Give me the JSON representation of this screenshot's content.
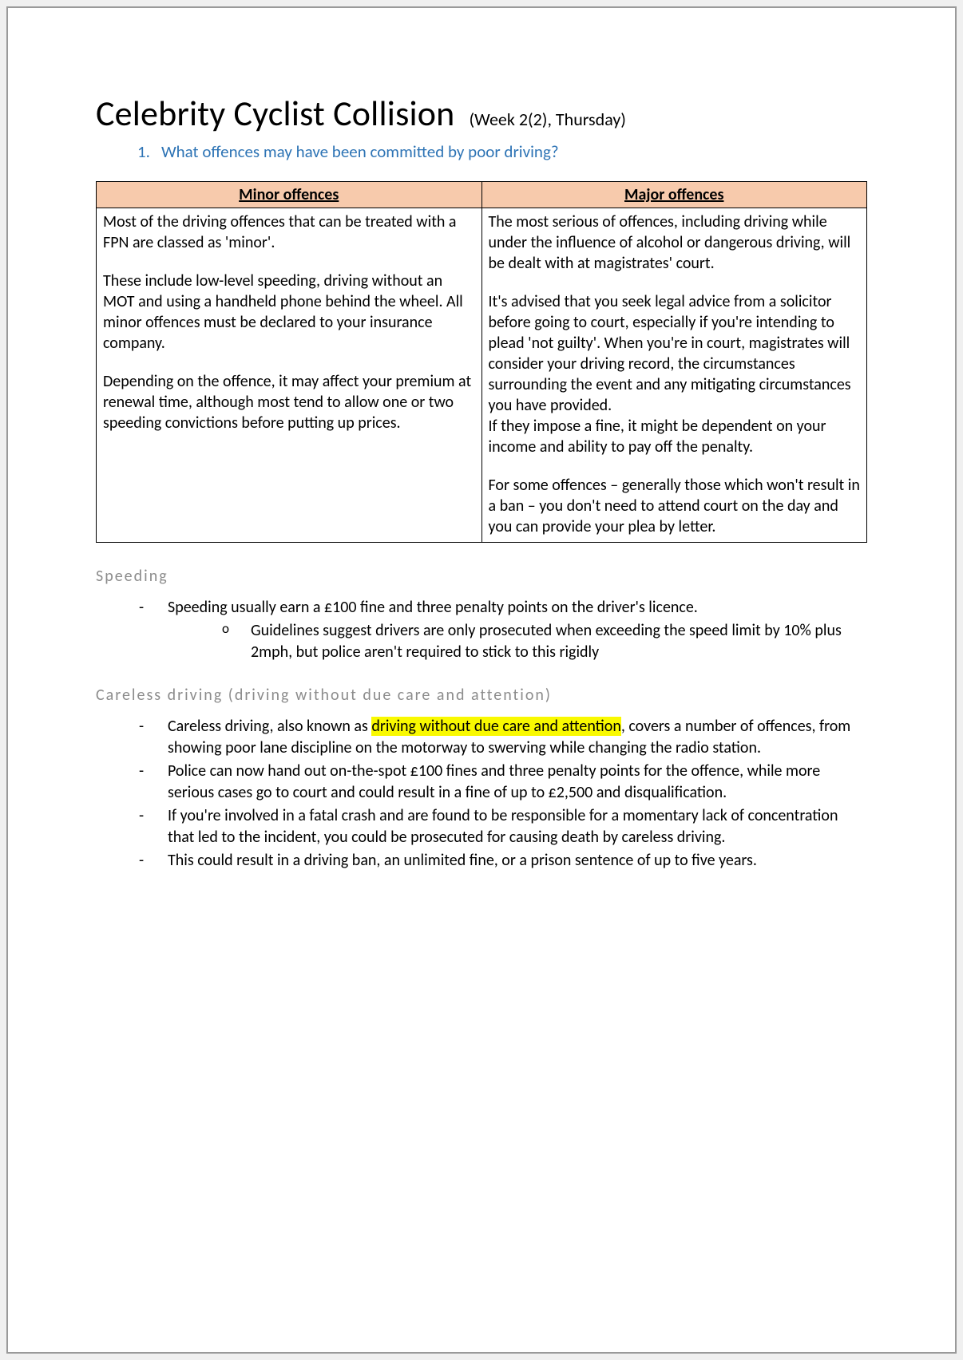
{
  "title": "Celebrity Cyclist Collision",
  "subtitle": "(Week 2(2), Thursday)",
  "question": {
    "num": "1.",
    "text": "What offences may have been committed by poor driving?"
  },
  "table": {
    "headers": {
      "minor": "Minor offences",
      "major": "Major offences"
    },
    "minor": {
      "p1": "Most of the driving offences that can be treated with a FPN are classed as 'minor'.",
      "p2": "These include low-level speeding, driving without an MOT and using a handheld phone behind the wheel. All minor offences must be declared to your insurance company.",
      "p3": "Depending on the offence, it may affect your premium at renewal time, although most tend to allow one or two speeding convictions before putting up prices."
    },
    "major": {
      "p1": "The most serious of offences, including driving while under the influence of alcohol or dangerous driving, will be dealt with at magistrates' court.",
      "p2": "It's advised that you seek legal advice from a solicitor before going to court, especially if you're intending to plead 'not guilty'. When you're in court, magistrates will consider your driving record, the circumstances surrounding the event and any mitigating circumstances you have provided.",
      "p2b": "If they impose a fine, it might be dependent on your income and ability to pay off the penalty.",
      "p3": "For some offences – generally those which won't result in a ban – you don't need to attend court on the day and you can provide your plea by letter."
    }
  },
  "speeding": {
    "heading": "Speeding",
    "b1": "Speeding usually earn a £100 fine and three penalty points on the driver's licence.",
    "b1a": "Guidelines suggest drivers are only prosecuted when exceeding the speed limit by 10% plus 2mph, but police aren't required to stick to this rigidly"
  },
  "careless": {
    "heading": "Careless driving (driving without due care and attention)",
    "b1_pre": "Careless driving, also known as ",
    "b1_hl": "driving without due care and attention",
    "b1_post": ", covers a number of offences, from showing poor lane discipline on the motorway to swerving while changing the radio station.",
    "b2": "Police can now hand out on-the-spot £100 fines and three penalty points for the offence, while more serious cases go to court and could result in a fine of up to £2,500 and disqualification.",
    "b3": "If you're involved in a fatal crash and are found to be responsible for a momentary lack of concentration that led to the incident, you could be prosecuted for causing death by careless driving.",
    "b4": "This could result in a driving ban, an unlimited fine, or a prison sentence of up to five years."
  },
  "colors": {
    "heading_blue": "#2e74b5",
    "table_header_bg": "#f7caac",
    "section_grey": "#8c8c8c",
    "highlight": "#f9f900",
    "border": "#000000",
    "page_border": "#9a9a9a"
  }
}
